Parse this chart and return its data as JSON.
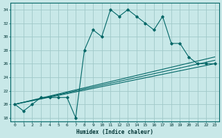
{
  "xlabel": "Humidex (Indice chaleur)",
  "background_color": "#c8e8e8",
  "grid_color": "#a0c8c8",
  "line_color": "#006666",
  "xlim": [
    -0.5,
    23.5
  ],
  "ylim": [
    17.5,
    35.0
  ],
  "xticks": [
    0,
    1,
    2,
    3,
    4,
    5,
    6,
    7,
    8,
    9,
    10,
    11,
    12,
    13,
    14,
    15,
    16,
    17,
    18,
    19,
    20,
    21,
    22,
    23
  ],
  "yticks": [
    18,
    20,
    22,
    24,
    26,
    28,
    30,
    32,
    34
  ],
  "series": [
    {
      "x": [
        0,
        1,
        2,
        3,
        4,
        5,
        6,
        7,
        8,
        9,
        10,
        11,
        12,
        13,
        14,
        15,
        16,
        17,
        18,
        19,
        20,
        21,
        22,
        23
      ],
      "y": [
        20,
        19,
        20,
        21,
        21,
        21,
        21,
        18,
        28,
        31,
        30,
        34,
        33,
        34,
        33,
        32,
        31,
        33,
        29,
        29,
        27,
        26,
        26,
        26
      ]
    },
    {
      "x": [
        0,
        23
      ],
      "y": [
        20,
        26
      ]
    },
    {
      "x": [
        0,
        23
      ],
      "y": [
        20,
        26.5
      ]
    },
    {
      "x": [
        0,
        23
      ],
      "y": [
        20,
        27
      ]
    }
  ]
}
